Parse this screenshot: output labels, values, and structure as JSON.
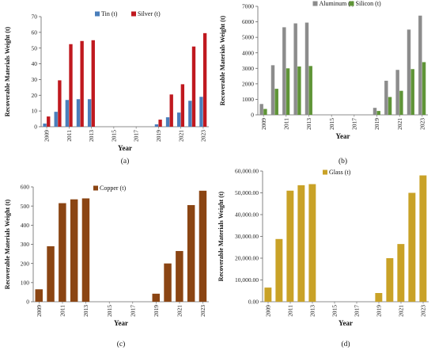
{
  "years": [
    2009,
    2010,
    2011,
    2012,
    2013,
    2014,
    2015,
    2016,
    2017,
    2018,
    2019,
    2020,
    2021,
    2022,
    2023
  ],
  "chart_data": [
    {
      "type": "bar",
      "panel_label": "(a)",
      "xlabel": "Year",
      "ylabel": "Recoverable Materials Weight (t)",
      "ylim": [
        0,
        70
      ],
      "yticks": [
        "0",
        "10",
        "20",
        "30",
        "40",
        "50",
        "60",
        "70"
      ],
      "xticks": [
        "2009",
        "2011",
        "2013",
        "2015",
        "2017",
        "2019",
        "2021",
        "2023"
      ],
      "legend_position": "top",
      "series": [
        {
          "name": "Tin (t)",
          "color": "#4a7ebb",
          "values": [
            2,
            9.5,
            17,
            17.5,
            17.5,
            0,
            0,
            0,
            0,
            0,
            1.5,
            6,
            9,
            16.5,
            19
          ]
        },
        {
          "name": "Silver (t)",
          "color": "#c0191f",
          "values": [
            6.5,
            29.5,
            52.5,
            54.5,
            55,
            0,
            0,
            0,
            0,
            0,
            4.5,
            20.5,
            27,
            51,
            59.5
          ]
        }
      ]
    },
    {
      "type": "bar",
      "panel_label": "(b)",
      "xlabel": "Year",
      "ylabel": "Recoverable Materials Weight (t)",
      "ylim": [
        0,
        7000
      ],
      "yticks": [
        "0",
        "1000",
        "2000",
        "3000",
        "4000",
        "5000",
        "6000",
        "7000"
      ],
      "xticks": [
        "2009",
        "2011",
        "2013",
        "2015",
        "2017",
        "2019",
        "2021",
        "2023"
      ],
      "legend_position": "top",
      "series": [
        {
          "name": "Aluminum (t)",
          "color": "#8c8c8c",
          "values": [
            700,
            3200,
            5650,
            5900,
            5950,
            0,
            0,
            0,
            0,
            0,
            450,
            2200,
            2900,
            5500,
            6400
          ]
        },
        {
          "name": "Silicon (t)",
          "color": "#5f9437",
          "values": [
            380,
            1680,
            3000,
            3120,
            3150,
            0,
            0,
            0,
            0,
            0,
            250,
            1150,
            1550,
            2950,
            3400
          ]
        }
      ]
    },
    {
      "type": "bar",
      "panel_label": "(c)",
      "xlabel": "Year",
      "ylabel": "Recoverable Materials Weight (t)",
      "ylim": [
        0,
        600
      ],
      "yticks": [
        "0",
        "100",
        "200",
        "300",
        "400",
        "500",
        "600"
      ],
      "xticks": [
        "2009",
        "2011",
        "2013",
        "2015",
        "2017",
        "2019",
        "2021",
        "2023"
      ],
      "legend_position": "top-left",
      "series": [
        {
          "name": "Copper (t)",
          "color": "#8b4513",
          "values": [
            65,
            290,
            515,
            535,
            540,
            0,
            0,
            0,
            0,
            0,
            42,
            200,
            265,
            505,
            580
          ]
        }
      ]
    },
    {
      "type": "bar",
      "panel_label": "(d)",
      "xlabel": "Year",
      "ylabel": "Recoverable Materials Weight (t)",
      "ylim": [
        0,
        60000
      ],
      "yticks": [
        "0.00",
        "10,000.00",
        "20,000.00",
        "30,000.00",
        "40,000.00",
        "50,000.00",
        "60,000.00"
      ],
      "xticks": [
        "2009",
        "2011",
        "2013",
        "2015",
        "2017",
        "2019",
        "2021",
        "2023"
      ],
      "legend_position": "top-left",
      "series": [
        {
          "name": "Glass (t)",
          "color": "#c9a227",
          "values": [
            6500,
            28800,
            51000,
            53500,
            54000,
            0,
            0,
            0,
            0,
            0,
            4000,
            20000,
            26500,
            50000,
            58000
          ]
        }
      ]
    }
  ]
}
